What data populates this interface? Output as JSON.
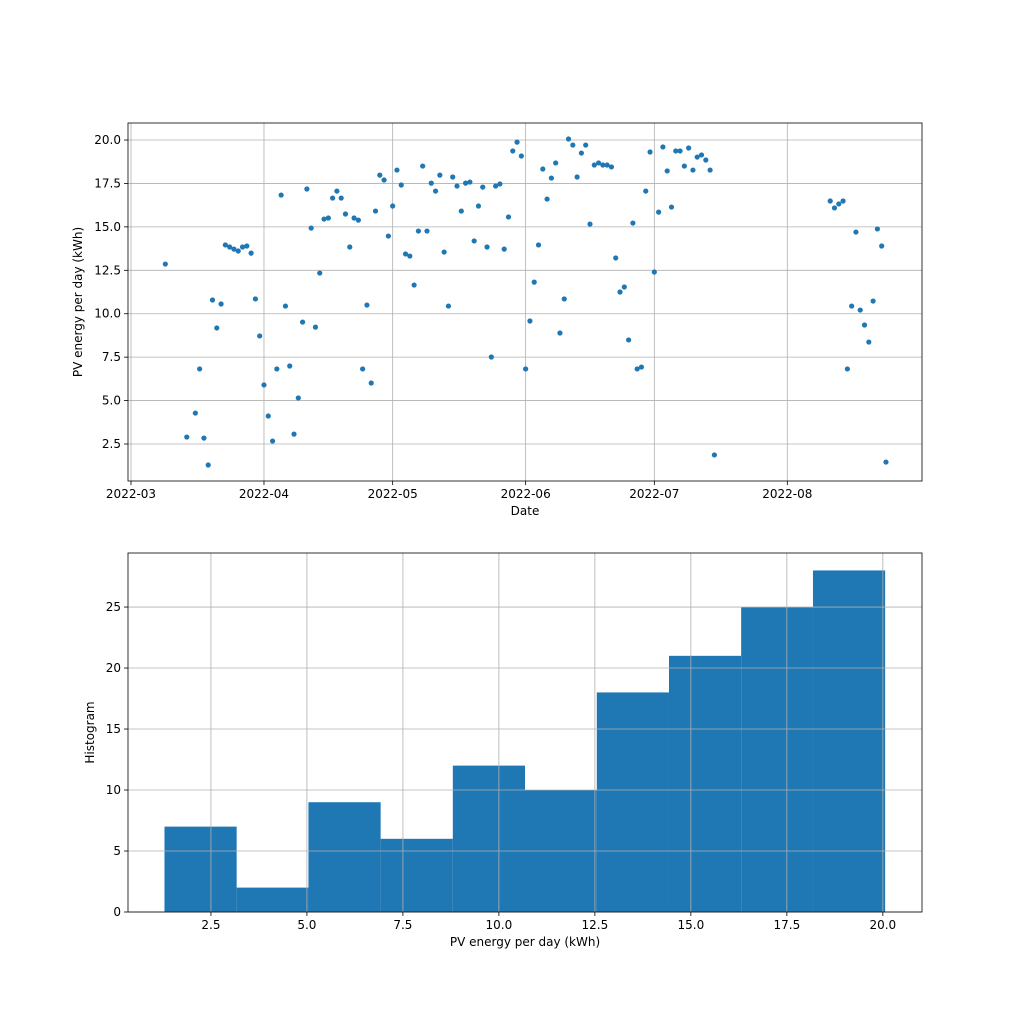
{
  "chart_data": [
    {
      "type": "scatter",
      "xlabel": "Date",
      "ylabel": "PV energy per day (kWh)",
      "color": "#1f77b4",
      "grid": true,
      "x": [
        19060,
        19065,
        19067,
        19068,
        19069,
        19070,
        19071,
        19072,
        19073,
        19074,
        19075,
        19076,
        19077,
        19078,
        19079,
        19080,
        19081,
        19082,
        19083,
        19084,
        19085,
        19086,
        19087,
        19088,
        19089,
        19090,
        19091,
        19092,
        19093,
        19094,
        19095,
        19096,
        19097,
        19098,
        19099,
        19100,
        19101,
        19102,
        19103,
        19104,
        19105,
        19106,
        19107,
        19108,
        19109,
        19110,
        19111,
        19112,
        19113,
        19114,
        19115,
        19116,
        19117,
        19118,
        19119,
        19120,
        19121,
        19122,
        19123,
        19124,
        19125,
        19126,
        19127,
        19128,
        19129,
        19130,
        19131,
        19132,
        19133,
        19134,
        19135,
        19136,
        19137,
        19138,
        19139,
        19140,
        19141,
        19142,
        19143,
        19144,
        19145,
        19146,
        19147,
        19148,
        19149,
        19150,
        19151,
        19152,
        19153,
        19154,
        19155,
        19156,
        19157,
        19158,
        19159,
        19160,
        19161,
        19162,
        19163,
        19164,
        19165,
        19166,
        19167,
        19168,
        19169,
        19170,
        19171,
        19172,
        19173,
        19174,
        19175,
        19176,
        19177,
        19178,
        19179,
        19180,
        19181,
        19182,
        19183,
        19184,
        19185,
        19186,
        19187,
        19188,
        19215,
        19216,
        19217,
        19218,
        19219,
        19220,
        19221,
        19222,
        19223,
        19224,
        19225,
        19226,
        19227,
        19228
      ],
      "values": [
        12.86,
        2.9,
        4.28,
        6.82,
        2.84,
        1.29,
        10.79,
        9.18,
        10.56,
        13.96,
        13.84,
        13.72,
        13.61,
        13.84,
        13.9,
        13.49,
        10.85,
        8.72,
        5.9,
        4.11,
        2.67,
        6.82,
        16.83,
        10.44,
        6.99,
        3.07,
        5.15,
        9.52,
        17.18,
        14.93,
        9.23,
        12.34,
        15.45,
        15.51,
        16.66,
        17.06,
        16.66,
        15.74,
        13.84,
        15.51,
        15.39,
        6.82,
        10.5,
        6.01,
        15.91,
        17.98,
        17.7,
        14.47,
        16.2,
        18.27,
        17.41,
        13.44,
        13.32,
        11.65,
        14.76,
        18.5,
        14.76,
        17.52,
        17.06,
        17.98,
        13.55,
        10.44,
        17.87,
        17.35,
        15.91,
        17.52,
        17.58,
        14.19,
        16.2,
        17.29,
        13.84,
        7.51,
        17.35,
        17.47,
        13.72,
        15.57,
        19.37,
        19.88,
        19.08,
        6.82,
        9.58,
        11.82,
        13.96,
        18.33,
        16.6,
        17.81,
        18.68,
        8.89,
        10.85,
        20.06,
        19.71,
        17.87,
        19.25,
        19.71,
        15.16,
        18.56,
        18.68,
        18.56,
        18.56,
        18.45,
        13.21,
        11.25,
        11.54,
        8.49,
        15.22,
        6.82,
        6.93,
        17.06,
        19.31,
        12.4,
        15.85,
        19.6,
        18.22,
        16.14,
        19.37,
        19.37,
        18.5,
        19.54,
        18.27,
        19.02,
        19.14,
        18.85,
        18.27,
        1.87,
        16.49,
        16.09,
        16.32,
        16.49,
        6.82,
        10.44,
        14.7,
        10.21,
        9.35,
        8.37,
        10.73,
        14.88,
        13.9,
        1.46
      ],
      "xlim": [
        19051.3,
        19236.4
      ],
      "xticks": [
        {
          "value": 19052,
          "label": "2022-03"
        },
        {
          "value": 19083,
          "label": "2022-04"
        },
        {
          "value": 19113,
          "label": "2022-05"
        },
        {
          "value": 19144,
          "label": "2022-06"
        },
        {
          "value": 19174,
          "label": "2022-07"
        },
        {
          "value": 19205,
          "label": "2022-08"
        }
      ],
      "ylim": [
        0.37,
        20.98
      ],
      "yticks": [
        2.5,
        {
          "value": 5,
          "label": "5.0"
        },
        7.5,
        {
          "value": 10,
          "label": "10.0"
        },
        12.5,
        {
          "value": 15,
          "label": "15.0"
        },
        17.5,
        {
          "value": 20,
          "label": "20.0"
        }
      ]
    },
    {
      "type": "histogram",
      "xlabel": "PV energy per day (kWh)",
      "ylabel": "Histogram",
      "color": "#1f77b4",
      "grid": true,
      "bins": [
        1.29,
        3.17,
        5.04,
        6.92,
        8.8,
        10.68,
        12.55,
        14.43,
        16.31,
        18.18,
        20.06
      ],
      "values": [
        7,
        2,
        9,
        6,
        12,
        10,
        18,
        21,
        25,
        28
      ],
      "xlim": [
        0.34,
        21.02
      ],
      "xticks": [
        2.5,
        {
          "value": 5,
          "label": "5.0"
        },
        7.5,
        {
          "value": 10,
          "label": "10.0"
        },
        12.5,
        {
          "value": 15,
          "label": "15.0"
        },
        17.5,
        {
          "value": 20,
          "label": "20.0"
        }
      ],
      "ylim": [
        0,
        29.43
      ],
      "yticks": [
        0,
        5,
        10,
        15,
        20,
        25
      ]
    }
  ]
}
